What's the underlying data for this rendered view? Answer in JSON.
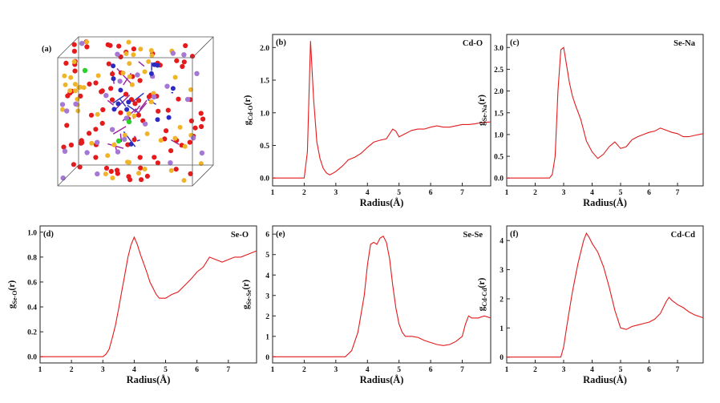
{
  "colors": {
    "curve": "#e31a1c",
    "oxygen_atom": "#e41a1c",
    "selenium_atom": "#f0b429",
    "sodium_atom": "#a678d6",
    "cadmium_atom": "#2b2bc2",
    "network_bond": "#9b1f9b",
    "highlight_atom": "#2bd12b"
  },
  "structure_panel": {
    "label": "(a)",
    "icon": "atomic-structure-cell"
  },
  "chart_data": [
    {
      "type": "line",
      "panel_label": "(b)",
      "pair": "Cd-O",
      "xlabel": "Radius(Å)",
      "ylabel_main": "g",
      "ylabel_sub": "Cd-O",
      "ylabel_tail": "(r)",
      "xlim": [
        1,
        7.9
      ],
      "ylim": [
        -0.12,
        2.2
      ],
      "x_ticks": [
        "1",
        "2",
        "3",
        "4",
        "5",
        "6",
        "7"
      ],
      "y_ticks": [
        "0.0",
        "0.5",
        "1.0",
        "1.5",
        "2.0"
      ],
      "x": [
        1.0,
        2.0,
        2.1,
        2.2,
        2.3,
        2.4,
        2.5,
        2.6,
        2.7,
        2.8,
        2.9,
        3.0,
        3.2,
        3.4,
        3.6,
        3.8,
        4.0,
        4.2,
        4.4,
        4.6,
        4.8,
        4.9,
        5.0,
        5.2,
        5.4,
        5.6,
        5.8,
        6.0,
        6.2,
        6.4,
        6.6,
        6.8,
        7.0,
        7.2,
        7.4,
        7.6,
        7.9
      ],
      "y": [
        0.0,
        0.0,
        0.4,
        2.1,
        1.2,
        0.55,
        0.3,
        0.15,
        0.08,
        0.05,
        0.07,
        0.1,
        0.18,
        0.28,
        0.32,
        0.38,
        0.47,
        0.55,
        0.58,
        0.6,
        0.75,
        0.72,
        0.63,
        0.68,
        0.73,
        0.75,
        0.75,
        0.78,
        0.8,
        0.78,
        0.78,
        0.8,
        0.82,
        0.82,
        0.83,
        0.85,
        0.86
      ]
    },
    {
      "type": "line",
      "panel_label": "(c)",
      "pair": "Se-Na",
      "xlabel": "Radius(Å)",
      "ylabel_main": "g",
      "ylabel_sub": "Se-Na",
      "ylabel_tail": "(r)",
      "xlim": [
        1,
        7.9
      ],
      "ylim": [
        -0.18,
        3.3
      ],
      "x_ticks": [
        "1",
        "2",
        "3",
        "4",
        "5",
        "6",
        "7"
      ],
      "y_ticks": [
        "0.0",
        "0.5",
        "1.0",
        "1.5",
        "2.0",
        "2.5",
        "3.0"
      ],
      "x": [
        1.0,
        2.5,
        2.6,
        2.7,
        2.8,
        2.9,
        3.0,
        3.1,
        3.2,
        3.3,
        3.4,
        3.6,
        3.8,
        4.0,
        4.2,
        4.4,
        4.6,
        4.8,
        5.0,
        5.2,
        5.4,
        5.6,
        5.8,
        6.0,
        6.2,
        6.4,
        6.6,
        6.8,
        7.0,
        7.2,
        7.4,
        7.6,
        7.9
      ],
      "y": [
        0.0,
        0.0,
        0.08,
        0.5,
        2.0,
        2.95,
        3.0,
        2.6,
        2.2,
        1.9,
        1.7,
        1.35,
        0.85,
        0.6,
        0.45,
        0.55,
        0.72,
        0.83,
        0.68,
        0.72,
        0.88,
        0.95,
        1.0,
        1.05,
        1.08,
        1.15,
        1.1,
        1.05,
        1.02,
        0.95,
        0.95,
        0.98,
        1.02
      ]
    },
    {
      "type": "line",
      "panel_label": "(d)",
      "pair": "Se-O",
      "xlabel": "Radius(Å)",
      "ylabel_main": "g",
      "ylabel_sub": "Se-O",
      "ylabel_tail": "(r)",
      "xlim": [
        1,
        7.9
      ],
      "ylim": [
        -0.05,
        1.05
      ],
      "x_ticks": [
        "1",
        "2",
        "3",
        "4",
        "5",
        "6",
        "7"
      ],
      "y_ticks": [
        "0.0",
        "0.2",
        "0.4",
        "0.6",
        "0.8",
        "1.0"
      ],
      "x": [
        1.0,
        3.0,
        3.1,
        3.2,
        3.3,
        3.4,
        3.5,
        3.6,
        3.7,
        3.8,
        3.9,
        4.0,
        4.1,
        4.2,
        4.3,
        4.4,
        4.5,
        4.6,
        4.7,
        4.8,
        5.0,
        5.2,
        5.4,
        5.6,
        5.8,
        6.0,
        6.2,
        6.4,
        6.6,
        6.8,
        7.0,
        7.2,
        7.4,
        7.6,
        7.9
      ],
      "y": [
        0.0,
        0.0,
        0.02,
        0.06,
        0.15,
        0.25,
        0.38,
        0.52,
        0.66,
        0.8,
        0.9,
        0.96,
        0.9,
        0.82,
        0.75,
        0.68,
        0.6,
        0.55,
        0.5,
        0.47,
        0.47,
        0.5,
        0.52,
        0.57,
        0.62,
        0.68,
        0.72,
        0.8,
        0.78,
        0.76,
        0.78,
        0.8,
        0.8,
        0.82,
        0.85
      ]
    },
    {
      "type": "line",
      "panel_label": "(e)",
      "pair": "Se-Se",
      "xlabel": "Radius(Å)",
      "ylabel_main": "g",
      "ylabel_sub": "Se-Se",
      "ylabel_tail": "(r)",
      "xlim": [
        1,
        7.9
      ],
      "ylim": [
        -0.3,
        6.4
      ],
      "x_ticks": [
        "1",
        "2",
        "3",
        "4",
        "5",
        "6",
        "7"
      ],
      "y_ticks": [
        "0",
        "1",
        "2",
        "3",
        "4",
        "5",
        "6"
      ],
      "x": [
        1.0,
        3.3,
        3.5,
        3.7,
        3.9,
        4.0,
        4.1,
        4.2,
        4.3,
        4.4,
        4.5,
        4.6,
        4.7,
        4.8,
        4.9,
        5.0,
        5.1,
        5.2,
        5.4,
        5.6,
        5.8,
        6.0,
        6.2,
        6.4,
        6.6,
        6.8,
        7.0,
        7.1,
        7.2,
        7.3,
        7.5,
        7.7,
        7.9
      ],
      "y": [
        0.0,
        0.0,
        0.3,
        1.2,
        3.0,
        4.5,
        5.5,
        5.6,
        5.5,
        5.8,
        5.9,
        5.6,
        4.8,
        3.5,
        2.4,
        1.6,
        1.2,
        1.0,
        1.0,
        0.95,
        0.8,
        0.7,
        0.6,
        0.55,
        0.6,
        0.75,
        1.0,
        1.6,
        2.0,
        1.9,
        1.9,
        2.0,
        1.9
      ]
    },
    {
      "type": "line",
      "panel_label": "(f)",
      "pair": "Cd-Cd",
      "xlabel": "Radius(Å)",
      "ylabel_main": "g",
      "ylabel_sub": "Cd-Cd",
      "ylabel_tail": "(r)",
      "xlim": [
        1,
        7.9
      ],
      "ylim": [
        -0.2,
        4.5
      ],
      "x_ticks": [
        "1",
        "2",
        "3",
        "4",
        "5",
        "6",
        "7"
      ],
      "y_ticks": [
        "0",
        "1",
        "2",
        "3",
        "4"
      ],
      "x": [
        1.0,
        2.9,
        3.0,
        3.1,
        3.2,
        3.3,
        3.4,
        3.5,
        3.6,
        3.7,
        3.8,
        3.9,
        4.0,
        4.2,
        4.4,
        4.6,
        4.8,
        5.0,
        5.2,
        5.4,
        5.6,
        5.8,
        6.0,
        6.2,
        6.4,
        6.6,
        6.7,
        6.8,
        7.0,
        7.2,
        7.4,
        7.6,
        7.9
      ],
      "y": [
        0.0,
        0.0,
        0.35,
        1.0,
        1.6,
        2.2,
        2.7,
        3.2,
        3.6,
        4.0,
        4.25,
        4.1,
        3.9,
        3.6,
        3.1,
        2.4,
        1.6,
        1.0,
        0.95,
        1.05,
        1.1,
        1.15,
        1.2,
        1.3,
        1.5,
        1.9,
        2.05,
        1.95,
        1.8,
        1.7,
        1.55,
        1.45,
        1.35
      ]
    }
  ]
}
